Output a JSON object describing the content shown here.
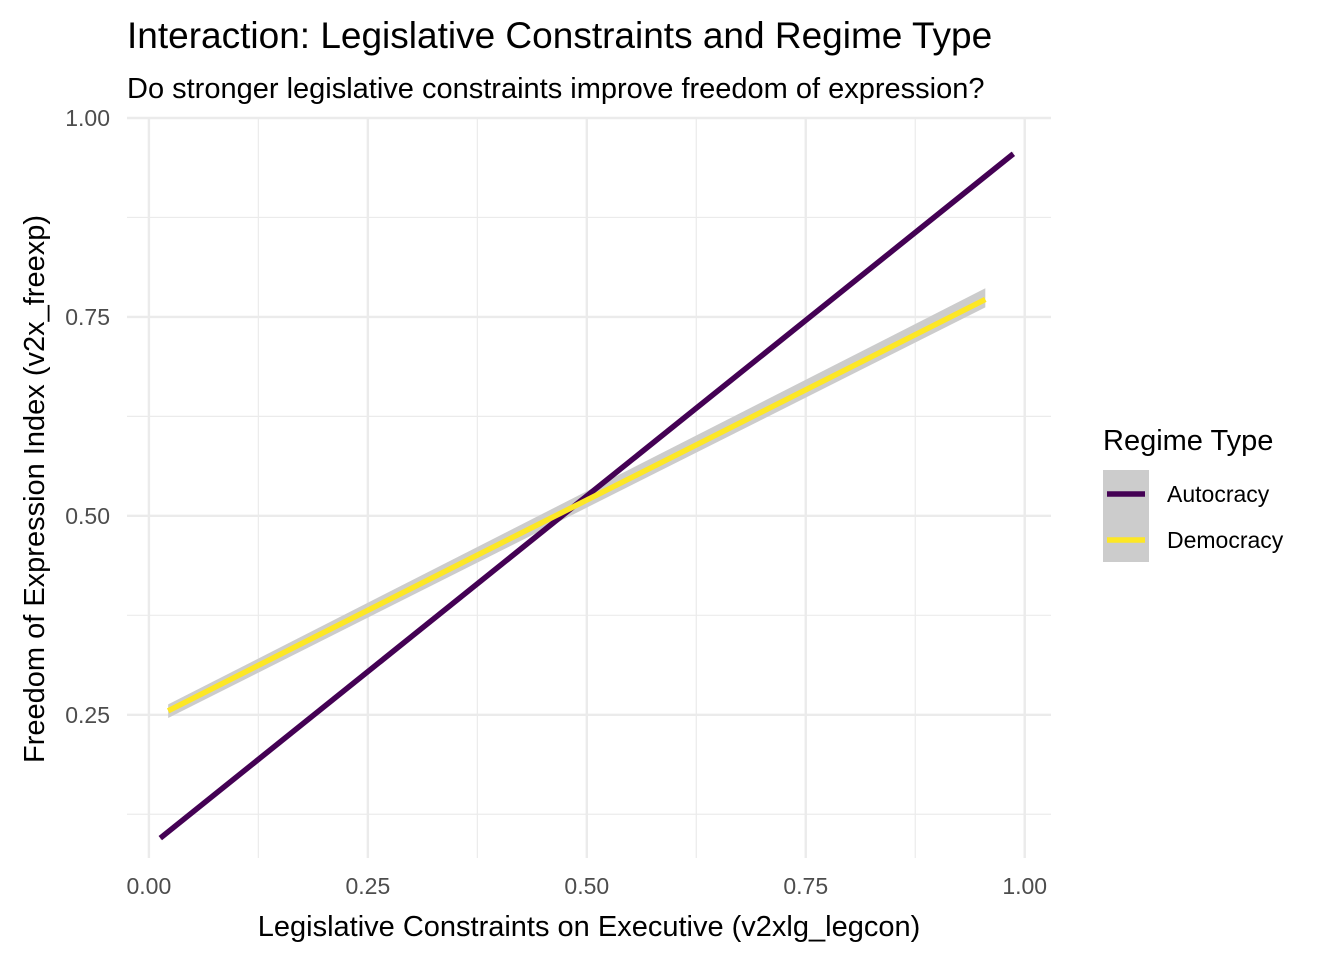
{
  "chart_data": {
    "type": "line",
    "title": "Interaction: Legislative Constraints and Regime Type",
    "subtitle": "Do stronger legislative constraints improve freedom of expression?",
    "xlabel": "Legislative Constraints on Executive (v2xlg_legcon)",
    "ylabel": "Freedom of Expression Index (v2x_freexp)",
    "xlim": [
      -0.025,
      1.03
    ],
    "ylim": [
      0.07,
      1.0
    ],
    "xticks": [
      "0.00",
      "0.25",
      "0.50",
      "0.75",
      "1.00"
    ],
    "yticks": [
      "0.25",
      "0.50",
      "0.75",
      "1.00"
    ],
    "grid": true,
    "legend": {
      "title": "Regime Type",
      "position": "right"
    },
    "series": [
      {
        "name": "Autocracy",
        "color": "#440154",
        "x": [
          0.013,
          0.987
        ],
        "y": [
          0.095,
          0.955
        ],
        "ci_lower": [
          0.093,
          0.952
        ],
        "ci_upper": [
          0.097,
          0.958
        ]
      },
      {
        "name": "Democracy",
        "color": "#FDE725",
        "x": [
          0.022,
          0.955
        ],
        "y": [
          0.255,
          0.772
        ],
        "ci_lower": [
          0.246,
          0.762
        ],
        "ci_upper": [
          0.263,
          0.786
        ]
      }
    ],
    "ribbon_color": "#CCCCCC"
  }
}
